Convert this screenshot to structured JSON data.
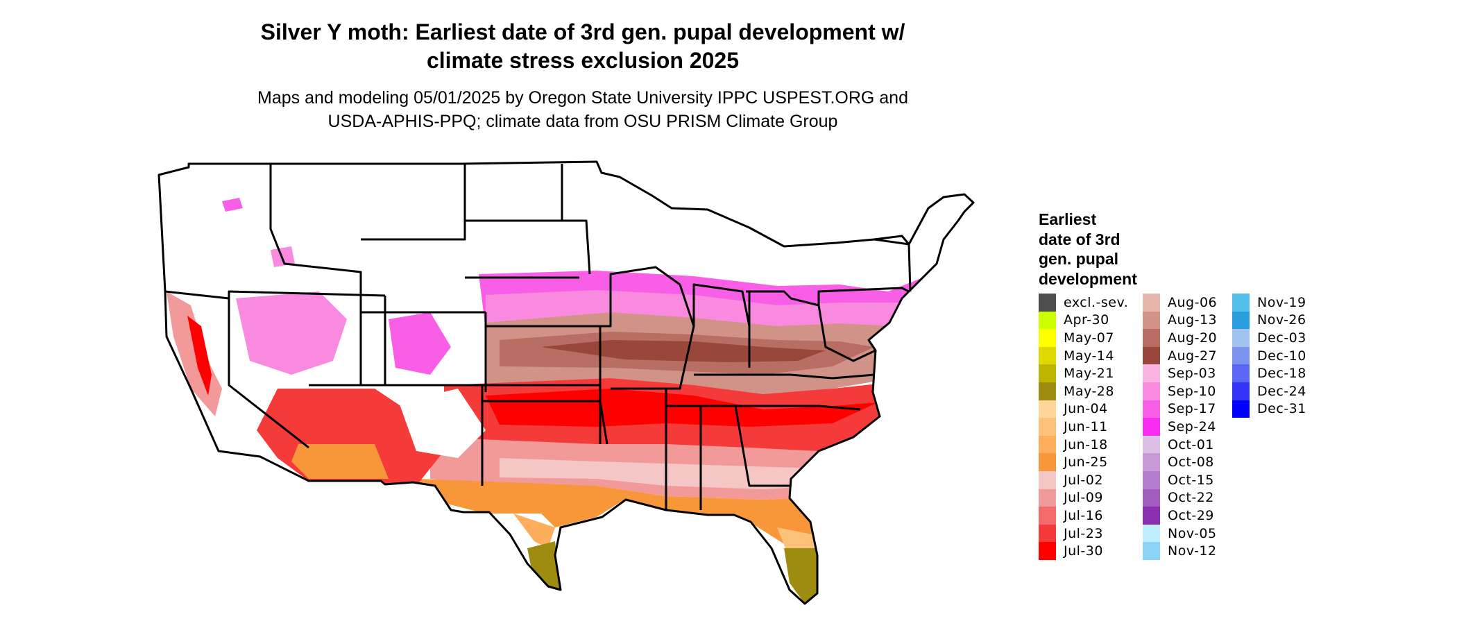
{
  "title_line1": "Silver Y moth: Earliest date of 3rd gen. pupal development w/",
  "title_line2": "climate stress exclusion 2025",
  "subtitle_line1": "Maps and modeling 05/01/2025 by Oregon State University IPPC USPEST.ORG and",
  "subtitle_line2": "USDA-APHIS-PPQ; climate data from OSU PRISM Climate Group",
  "legend": {
    "title_lines": [
      "Earliest",
      "date of 3rd",
      "gen. pupal",
      "development"
    ],
    "items": [
      {
        "label": "excl.-sev.",
        "color": "#4d4d4d"
      },
      {
        "label": "Apr-30",
        "color": "#ccff00"
      },
      {
        "label": "May-07",
        "color": "#ffff00"
      },
      {
        "label": "May-14",
        "color": "#e0d800"
      },
      {
        "label": "May-21",
        "color": "#bfb500"
      },
      {
        "label": "May-28",
        "color": "#9e8c10"
      },
      {
        "label": "Jun-04",
        "color": "#ffd59a"
      },
      {
        "label": "Jun-11",
        "color": "#fdc27a"
      },
      {
        "label": "Jun-18",
        "color": "#fcae5c"
      },
      {
        "label": "Jun-25",
        "color": "#f8963a"
      },
      {
        "label": "Jul-02",
        "color": "#f5c6c6"
      },
      {
        "label": "Jul-09",
        "color": "#f29a9a"
      },
      {
        "label": "Jul-16",
        "color": "#f26a6a"
      },
      {
        "label": "Jul-23",
        "color": "#f53a3a"
      },
      {
        "label": "Jul-30",
        "color": "#ff0000"
      },
      {
        "label": "Aug-06",
        "color": "#e8b6aa"
      },
      {
        "label": "Aug-13",
        "color": "#d19388"
      },
      {
        "label": "Aug-20",
        "color": "#b86e62"
      },
      {
        "label": "Aug-27",
        "color": "#99473b"
      },
      {
        "label": "Sep-03",
        "color": "#f9b4e2"
      },
      {
        "label": "Sep-10",
        "color": "#f98ae0"
      },
      {
        "label": "Sep-17",
        "color": "#f95ee6"
      },
      {
        "label": "Sep-24",
        "color": "#f72ef2"
      },
      {
        "label": "Oct-01",
        "color": "#dcc0e6"
      },
      {
        "label": "Oct-08",
        "color": "#c89ad8"
      },
      {
        "label": "Oct-15",
        "color": "#b47ccc"
      },
      {
        "label": "Oct-22",
        "color": "#a15cbe"
      },
      {
        "label": "Oct-29",
        "color": "#8a2fb0"
      },
      {
        "label": "Nov-05",
        "color": "#bfeeff"
      },
      {
        "label": "Nov-12",
        "color": "#8cd4f6"
      },
      {
        "label": "Nov-19",
        "color": "#55bfeb"
      },
      {
        "label": "Nov-26",
        "color": "#2a9fe0"
      },
      {
        "label": "Dec-03",
        "color": "#9fc2ee"
      },
      {
        "label": "Dec-10",
        "color": "#7b93ef"
      },
      {
        "label": "Dec-18",
        "color": "#5a66f4"
      },
      {
        "label": "Dec-24",
        "color": "#3434f8"
      },
      {
        "label": "Dec-31",
        "color": "#0000ff"
      }
    ]
  },
  "colors": {
    "background": "#ffffff",
    "state_border": "#000000"
  }
}
